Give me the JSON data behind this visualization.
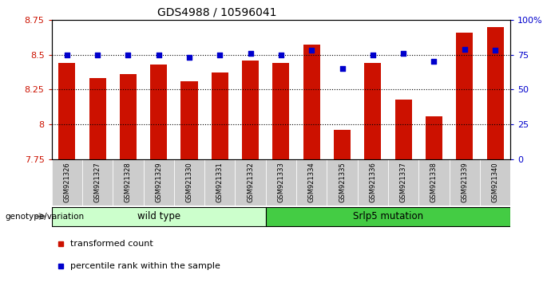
{
  "title": "GDS4988 / 10596041",
  "samples": [
    "GSM921326",
    "GSM921327",
    "GSM921328",
    "GSM921329",
    "GSM921330",
    "GSM921331",
    "GSM921332",
    "GSM921333",
    "GSM921334",
    "GSM921335",
    "GSM921336",
    "GSM921337",
    "GSM921338",
    "GSM921339",
    "GSM921340"
  ],
  "transformed_count": [
    8.44,
    8.33,
    8.36,
    8.43,
    8.31,
    8.37,
    8.46,
    8.44,
    8.57,
    7.96,
    8.44,
    8.18,
    8.06,
    8.66,
    8.7
  ],
  "percentile_rank": [
    75,
    75,
    75,
    75,
    73,
    75,
    76,
    75,
    78,
    65,
    75,
    76,
    70,
    79,
    78
  ],
  "ylim_left": [
    7.75,
    8.75
  ],
  "ylim_right": [
    0,
    100
  ],
  "yticks_left": [
    7.75,
    8.0,
    8.25,
    8.5,
    8.75
  ],
  "yticks_right": [
    0,
    25,
    50,
    75,
    100
  ],
  "ytick_labels_left": [
    "7.75",
    "8",
    "8.25",
    "8.5",
    "8.75"
  ],
  "ytick_labels_right": [
    "0",
    "25",
    "50",
    "75",
    "100%"
  ],
  "bar_color": "#cc1100",
  "dot_color": "#0000cc",
  "bg_color": "#ffffff",
  "tick_bg_color": "#cccccc",
  "wild_type_color": "#ccffcc",
  "mutation_color": "#44cc44",
  "wild_type_label": "wild type",
  "mutation_label": "Srlp5 mutation",
  "genotype_label": "genotype/variation",
  "legend_bar_label": "transformed count",
  "legend_dot_label": "percentile rank within the sample",
  "bar_width": 0.55,
  "dot_size": 25,
  "title_fontsize": 10,
  "axis_fontsize": 8,
  "label_fontsize": 7,
  "legend_fontsize": 8
}
